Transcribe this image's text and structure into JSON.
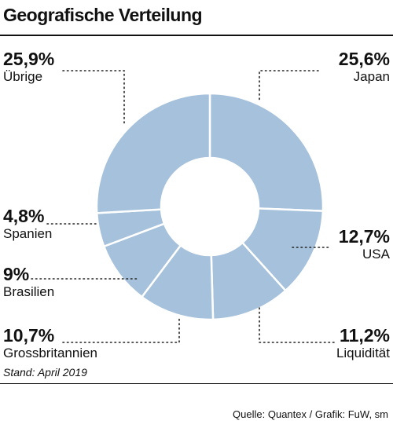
{
  "title": "Geografische Verteilung",
  "footnote": "Stand: April 2019",
  "source": "Quelle: Quantex / Grafik: FuW, sm",
  "colors": {
    "slice": "#a6c1dc",
    "separator": "#ffffff",
    "leader": "#222222"
  },
  "chart_data": {
    "type": "pie",
    "donut": true,
    "title": "Geografische Verteilung",
    "slices": [
      {
        "label": "Japan",
        "pct_text": "25,6%",
        "value": 25.6
      },
      {
        "label": "USA",
        "pct_text": "12,7%",
        "value": 12.7
      },
      {
        "label": "Liquidität",
        "pct_text": "11,2%",
        "value": 11.2
      },
      {
        "label": "Grossbritannien",
        "pct_text": "10,7%",
        "value": 10.7
      },
      {
        "label": "Brasilien",
        "pct_text": "9%",
        "value": 9
      },
      {
        "label": "Spanien",
        "pct_text": "4,8%",
        "value": 4.8
      },
      {
        "label": "Übrige",
        "pct_text": "25,9%",
        "value": 25.9
      }
    ]
  }
}
